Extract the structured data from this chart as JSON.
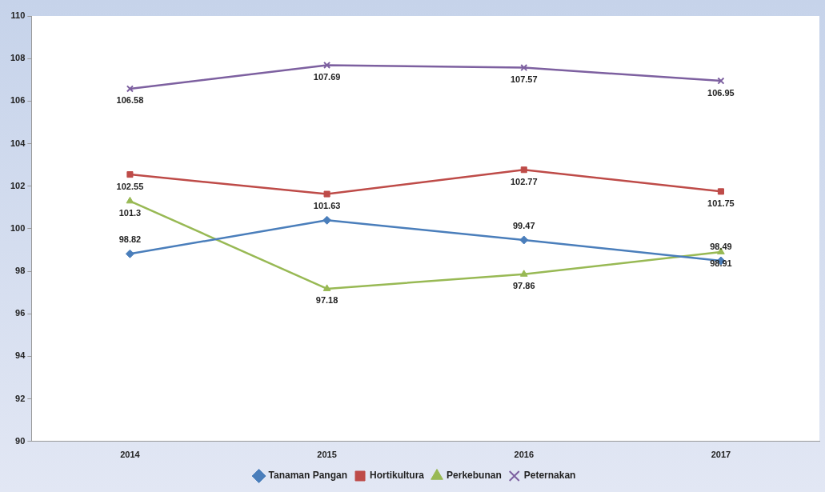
{
  "chart_data": {
    "type": "line",
    "categories": [
      "2014",
      "2015",
      "2016",
      "2017"
    ],
    "series": [
      {
        "name": "Tanaman Pangan",
        "color": "#4a7ebb",
        "marker": "diamond",
        "values": [
          98.82,
          100.4,
          99.47,
          98.49
        ],
        "value_labels": [
          "98.82",
          null,
          "99.47",
          "98.49"
        ]
      },
      {
        "name": "Hortikultura",
        "color": "#be4b48",
        "marker": "square",
        "values": [
          102.55,
          101.63,
          102.77,
          101.75
        ]
      },
      {
        "name": "Perkebunan",
        "color": "#98b954",
        "marker": "triangle",
        "values": [
          101.3,
          97.18,
          97.86,
          98.91
        ]
      },
      {
        "name": "Peternakan",
        "color": "#7d60a0",
        "marker": "cross",
        "values": [
          106.58,
          107.69,
          107.57,
          106.95
        ]
      }
    ],
    "ylim": [
      90,
      110
    ],
    "yticks": [
      90,
      92,
      94,
      96,
      98,
      100,
      102,
      104,
      106,
      108,
      110
    ],
    "grid": false,
    "legend": "bottom",
    "data_labels": true
  }
}
